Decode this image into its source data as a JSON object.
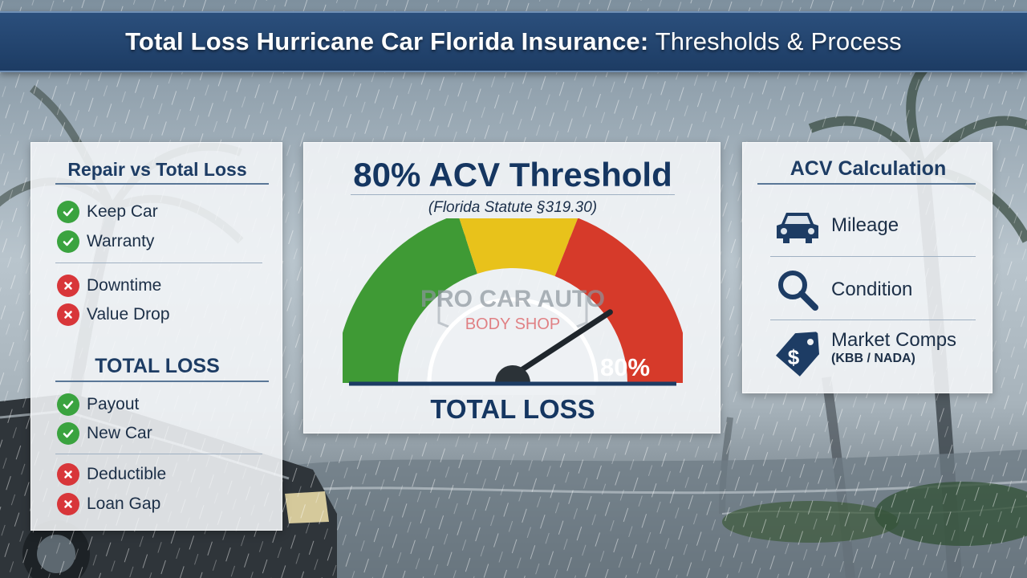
{
  "title": {
    "bold": "Total Loss Hurricane Car Florida Insurance:",
    "thin": " Thresholds & Process"
  },
  "left_panel": {
    "repair_heading": "Repair vs Total Loss",
    "repair_pros": [
      "Keep Car",
      "Warranty"
    ],
    "repair_cons": [
      "Downtime",
      "Value Drop"
    ],
    "total_heading": "TOTAL LOSS",
    "total_pros": [
      "Payout",
      "New Car"
    ],
    "total_cons": [
      "Deductible",
      "Loan Gap"
    ]
  },
  "mid_panel": {
    "title": "80% ACV Threshold",
    "subtitle": "(Florida Statute §319.30)",
    "gauge_value_label": "80%",
    "gauge_value": 0.8,
    "footer": "TOTAL LOSS",
    "watermark_line1": "PRO CAR AUTO",
    "watermark_line2": "BODY SHOP"
  },
  "right_panel": {
    "heading": "ACV Calculation",
    "items": [
      {
        "label": "Mileage",
        "icon": "car-icon"
      },
      {
        "label": "Condition",
        "icon": "magnifier-icon"
      },
      {
        "label": "Market Comps",
        "sub": "(KBB / NADA)",
        "icon": "price-tag-icon"
      }
    ]
  },
  "colors": {
    "navy": "#1d3c64",
    "check_green": "#3aa33f",
    "cross_red": "#d8363a",
    "gauge_green": "#3f9a35",
    "gauge_yellow": "#e8c21b",
    "gauge_red": "#d63a2a"
  }
}
